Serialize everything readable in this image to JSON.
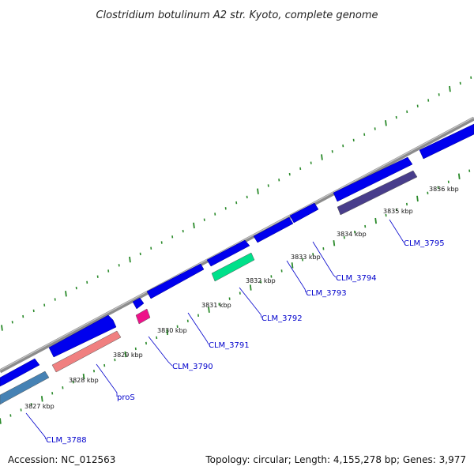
{
  "title": "Clostridium botulinum A2 str. Kyoto, complete genome",
  "footer": {
    "accession": "Accession: NC_012563",
    "topology": "Topology: circular; Length: 4,155,278 bp; Genes: 3,977"
  },
  "colors": {
    "backbone": "#8c8c8c",
    "forward_gene": "#0000ee",
    "label": "#0000cc",
    "minor_tick": "#2a8a2a",
    "major_tick": "#1f7a1f"
  },
  "position_ticks": [
    {
      "label": "3827 kbp"
    },
    {
      "label": "3828 kbp"
    },
    {
      "label": "3829 kbp"
    },
    {
      "label": "3830 kbp"
    },
    {
      "label": "3831 kbp"
    },
    {
      "label": "3832 kbp"
    },
    {
      "label": "3833 kbp"
    },
    {
      "label": "3834 kbp"
    },
    {
      "label": "3835 kbp"
    },
    {
      "label": "3836 kbp"
    }
  ],
  "gene_labels": [
    {
      "name": "CLM_3788"
    },
    {
      "name": "proS"
    },
    {
      "name": "CLM_3790"
    },
    {
      "name": "CLM_3791"
    },
    {
      "name": "CLM_3792"
    },
    {
      "name": "CLM_3793"
    },
    {
      "name": "CLM_3794"
    },
    {
      "name": "CLM_3795"
    }
  ],
  "reverse_genes": [
    {
      "color": "#4682b4"
    },
    {
      "color": "#f08080"
    },
    {
      "color": "#ee1289"
    },
    {
      "color": "#00e08a"
    },
    {
      "color": "#483d8b"
    }
  ]
}
